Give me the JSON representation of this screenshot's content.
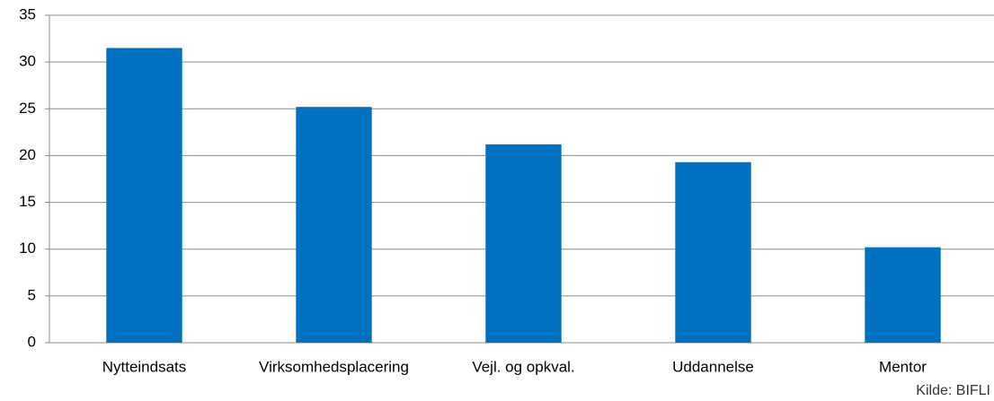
{
  "chart_data": {
    "type": "bar",
    "categories": [
      "Nytteindsats",
      "Virksomhedsplacering",
      "Vejl. og opkval.",
      "Uddannelse",
      "Mentor"
    ],
    "values": [
      31.5,
      25.2,
      21.2,
      19.3,
      10.2
    ],
    "color": "#0070c0",
    "ylim": [
      0,
      35
    ],
    "yticks": [
      0,
      5,
      10,
      15,
      20,
      25,
      30,
      35
    ],
    "grid": true,
    "source": "Kilde: BIFLI"
  }
}
